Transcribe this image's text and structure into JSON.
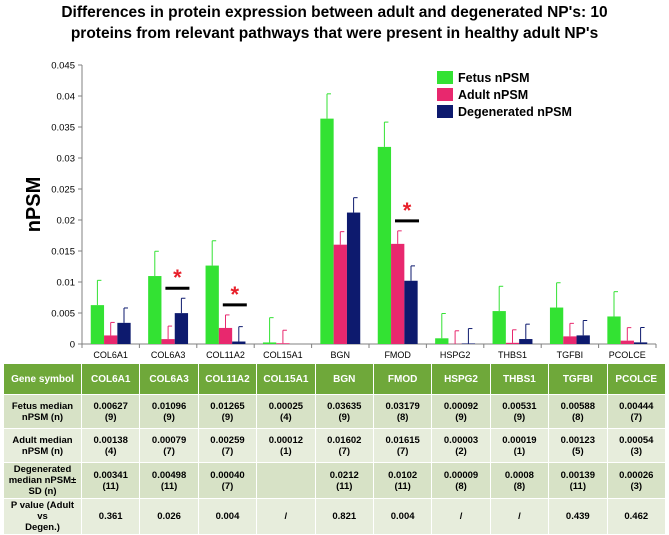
{
  "chart_data": {
    "type": "bar",
    "title": "Differences in protein expression between adult and degenerated NP's: 10 proteins from relevant pathways that were present in healthy adult NP's",
    "title_lines": [
      "Differences in protein expression between adult and degenerated NP's: 10",
      "proteins from relevant pathways that were present in healthy adult NP's"
    ],
    "ylabel": "nPSM",
    "xlabel": "",
    "ylim": [
      0,
      0.045
    ],
    "yticks": [
      "0",
      "0.005",
      "0.01",
      "0.015",
      "0.02",
      "0.025",
      "0.03",
      "0.035",
      "0.04",
      "0.045"
    ],
    "categories": [
      "COL6A1",
      "COL6A3",
      "COL11A2",
      "COL15A1",
      "BGN",
      "FMOD",
      "HSPG2",
      "THBS1",
      "TGFBI",
      "PCOLCE"
    ],
    "series": [
      {
        "name": "Fetus nPSM",
        "color": "#33e233",
        "values": [
          0.00627,
          0.01096,
          0.01265,
          0.00025,
          0.03635,
          0.03179,
          0.00092,
          0.00531,
          0.00588,
          0.00444
        ],
        "errors": [
          0.004,
          0.004,
          0.004,
          0.004,
          0.004,
          0.004,
          0.004,
          0.004,
          0.004,
          0.004
        ]
      },
      {
        "name": "Adult nPSM",
        "color": "#e8286e",
        "values": [
          0.00138,
          0.00079,
          0.00259,
          0.00012,
          0.01602,
          0.01615,
          3e-05,
          0.00019,
          0.00123,
          0.00054
        ],
        "errors": [
          0.0021,
          0.0021,
          0.0021,
          0.0021,
          0.0021,
          0.0021,
          0.0021,
          0.0021,
          0.0021,
          0.0021
        ]
      },
      {
        "name": "Degenerated nPSM",
        "color": "#0d1a6e",
        "values": [
          0.00341,
          0.00498,
          0.0004,
          0,
          0.0212,
          0.0102,
          9e-05,
          0.0008,
          0.00139,
          0.00026
        ],
        "errors": [
          0.0024,
          0.0024,
          0.0024,
          0,
          0.0024,
          0.0024,
          0.0024,
          0.0024,
          0.0024,
          0.0024
        ]
      }
    ],
    "significance_markers": [
      {
        "category": "COL6A3",
        "symbol": "*"
      },
      {
        "category": "COL11A2",
        "symbol": "*"
      },
      {
        "category": "FMOD",
        "symbol": "*"
      }
    ],
    "legend_position": "top-right",
    "grid": false
  },
  "table": {
    "header": [
      "Gene symbol",
      "COL6A1",
      "COL6A3",
      "COL11A2",
      "COL15A1",
      "BGN",
      "FMOD",
      "HSPG2",
      "THBS1",
      "TGFBI",
      "PCOLCE"
    ],
    "rows": [
      {
        "label": [
          "Fetus median",
          "nPSM (n)"
        ],
        "cells": [
          [
            "0.00627",
            "(9)"
          ],
          [
            "0.01096",
            "(9)"
          ],
          [
            "0.01265",
            "(9)"
          ],
          [
            "0.00025",
            "(4)"
          ],
          [
            "0.03635",
            "(9)"
          ],
          [
            "0.03179",
            "(8)"
          ],
          [
            "0.00092",
            "(9)"
          ],
          [
            "0.00531",
            "(9)"
          ],
          [
            "0.00588",
            "(8)"
          ],
          [
            "0.00444",
            "(7)"
          ]
        ]
      },
      {
        "label": [
          "Adult median",
          "nPSM (n)"
        ],
        "cells": [
          [
            "0.00138",
            "(4)"
          ],
          [
            "0.00079",
            "(7)"
          ],
          [
            "0.00259",
            "(7)"
          ],
          [
            "0.00012",
            "(1)"
          ],
          [
            "0.01602",
            "(7)"
          ],
          [
            "0.01615",
            "(7)"
          ],
          [
            "0.00003",
            "(2)"
          ],
          [
            "0.00019",
            "(1)"
          ],
          [
            "0.00123",
            "(5)"
          ],
          [
            "0.00054",
            "(3)"
          ]
        ]
      },
      {
        "label": [
          "Degenerated",
          "median nPSM±",
          "SD (n)"
        ],
        "cells": [
          [
            "0.00341",
            "(11)"
          ],
          [
            "0.00498",
            "(11)"
          ],
          [
            "0.00040",
            "(7)"
          ],
          [
            "",
            ""
          ],
          [
            "0.0212",
            "(11)"
          ],
          [
            "0.0102",
            "(11)"
          ],
          [
            "0.00009",
            "(8)"
          ],
          [
            "0.0008",
            "(8)"
          ],
          [
            "0.00139",
            "(11)"
          ],
          [
            "0.00026",
            "(3)"
          ]
        ]
      },
      {
        "label": [
          "P value (Adult vs",
          "Degen.)"
        ],
        "cells": [
          [
            "0.361",
            ""
          ],
          [
            "0.026",
            ""
          ],
          [
            "0.004",
            ""
          ],
          [
            "/",
            ""
          ],
          [
            "0.821",
            ""
          ],
          [
            "0.004",
            ""
          ],
          [
            "/",
            ""
          ],
          [
            "/",
            ""
          ],
          [
            "0.439",
            ""
          ],
          [
            "0.462",
            ""
          ]
        ]
      }
    ]
  }
}
